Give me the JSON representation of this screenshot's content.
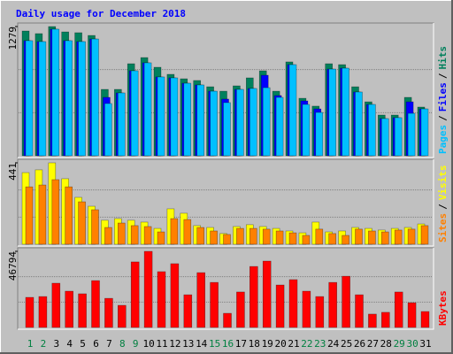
{
  "chart_data": [
    {
      "type": "bar",
      "title": "Daily usage for December 2018",
      "ylim": [
        0,
        1279
      ],
      "yticks": [
        1279
      ],
      "separator": "/",
      "series": [
        {
          "name": "Hits",
          "color": "#00805c",
          "values": [
            1235,
            1209,
            1279,
            1226,
            1218,
            1191,
            657,
            657,
            911,
            972,
            876,
            806,
            762,
            745,
            683,
            639,
            692,
            771,
            841,
            639,
            929,
            569,
            491,
            911,
            902,
            683,
            534,
            403,
            403,
            578,
            482
          ]
        },
        {
          "name": "Files",
          "color": "#0000ff",
          "values": [
            1139,
            1130,
            1253,
            1139,
            1130,
            1156,
            578,
            622,
            841,
            920,
            780,
            771,
            718,
            701,
            639,
            561,
            657,
            666,
            797,
            596,
            902,
            543,
            464,
            858,
            867,
            631,
            508,
            368,
            377,
            534,
            464
          ]
        },
        {
          "name": "Pages",
          "color": "#00c0ff",
          "values": [
            1139,
            1130,
            1253,
            1139,
            1130,
            1156,
            517,
            622,
            841,
            920,
            780,
            771,
            718,
            701,
            639,
            526,
            657,
            666,
            674,
            578,
            902,
            508,
            429,
            858,
            867,
            631,
            508,
            368,
            377,
            420,
            464
          ]
        }
      ]
    },
    {
      "type": "bar",
      "ylim": [
        0,
        441
      ],
      "yticks": [
        441
      ],
      "separator": "/",
      "series": [
        {
          "name": "Visits",
          "color": "#ffff00",
          "values": [
            388,
            403,
            441,
            355,
            254,
            206,
            130,
            139,
            130,
            120,
            86,
            192,
            168,
            101,
            91,
            58,
            96,
            106,
            96,
            86,
            72,
            62,
            120,
            67,
            72,
            91,
            86,
            77,
            86,
            91,
            110
          ]
        },
        {
          "name": "Sites",
          "color": "#ff8000",
          "values": [
            311,
            321,
            350,
            311,
            230,
            187,
            91,
            115,
            101,
            96,
            67,
            139,
            134,
            91,
            72,
            53,
            86,
            86,
            82,
            72,
            62,
            48,
            82,
            58,
            48,
            82,
            72,
            67,
            77,
            82,
            101
          ]
        }
      ]
    },
    {
      "type": "bar",
      "ylim": [
        0,
        46794
      ],
      "yticks": [
        46794
      ],
      "categories": [
        "1",
        "2",
        "3",
        "4",
        "5",
        "6",
        "7",
        "8",
        "9",
        "10",
        "11",
        "12",
        "13",
        "14",
        "15",
        "16",
        "17",
        "18",
        "19",
        "20",
        "21",
        "22",
        "23",
        "24",
        "25",
        "26",
        "27",
        "28",
        "29",
        "30",
        "31"
      ],
      "category_colors": [
        "#008040",
        "#008040",
        "#000000",
        "#000000",
        "#000000",
        "#000000",
        "#000000",
        "#008040",
        "#008040",
        "#000000",
        "#000000",
        "#000000",
        "#000000",
        "#000000",
        "#008040",
        "#008040",
        "#000000",
        "#000000",
        "#000000",
        "#000000",
        "#000000",
        "#008040",
        "#008040",
        "#000000",
        "#000000",
        "#000000",
        "#000000",
        "#000000",
        "#008040",
        "#008040",
        "#000000"
      ],
      "series": [
        {
          "name": "KBytes",
          "color": "#ff0000",
          "values": [
            18500,
            19000,
            27200,
            22300,
            20700,
            28800,
            17900,
            13600,
            40300,
            46794,
            34300,
            39200,
            20100,
            33700,
            27700,
            8700,
            21800,
            37500,
            40800,
            26100,
            29400,
            22300,
            19000,
            27700,
            31500,
            20100,
            8200,
            9300,
            21800,
            15200,
            9800
          ]
        }
      ]
    }
  ]
}
